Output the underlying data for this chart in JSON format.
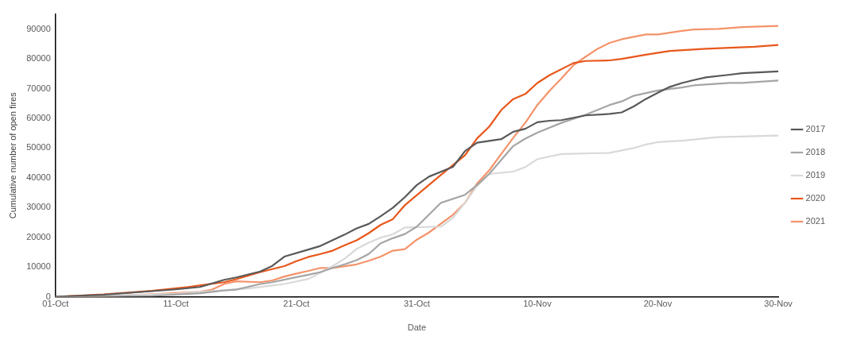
{
  "chart_data": {
    "type": "line",
    "xlabel": "Date",
    "ylabel": "Cumulative number of open fires",
    "xlim": [
      "--10-01",
      "--11-30"
    ],
    "xticks": [
      {
        "value": "--10-01",
        "label": "01-Oct"
      },
      {
        "value": "--10-11",
        "label": "11-Oct"
      },
      {
        "value": "--10-21",
        "label": "21-Oct"
      },
      {
        "value": "--10-31",
        "label": "31-Oct"
      },
      {
        "value": "--11-10",
        "label": "10-Nov"
      },
      {
        "value": "--11-20",
        "label": "20-Nov"
      },
      {
        "value": "--11-30",
        "label": "30-Nov"
      }
    ],
    "ylim": [
      0,
      95000
    ],
    "yticks": [
      0,
      10000,
      20000,
      30000,
      40000,
      50000,
      60000,
      70000,
      80000,
      90000
    ],
    "grid": false,
    "legend": "right",
    "marker": "none",
    "line_style": "solid",
    "series": [
      {
        "name": "2017",
        "color": "#595959",
        "x": [
          "--10-01",
          "--10-05",
          "--10-09",
          "--10-11",
          "--10-13",
          "--10-15",
          "--10-16",
          "--10-18",
          "--10-19",
          "--10-20",
          "--10-22",
          "--10-23",
          "--10-25",
          "--10-26",
          "--10-27",
          "--10-28",
          "--10-29",
          "--10-30",
          "--10-31",
          "--11-01",
          "--11-03",
          "--11-04",
          "--11-05",
          "--11-07",
          "--11-08",
          "--11-09",
          "--11-10",
          "--11-11",
          "--11-12",
          "--11-14",
          "--11-16",
          "--11-17",
          "--11-18",
          "--11-19",
          "--11-20",
          "--11-21",
          "--11-22",
          "--11-23",
          "--11-24",
          "--11-26",
          "--11-27",
          "--11-30"
        ],
        "values": [
          0,
          700,
          1900,
          2500,
          3300,
          5700,
          6500,
          8500,
          10400,
          13500,
          15900,
          17100,
          20900,
          23000,
          24500,
          27100,
          29900,
          33500,
          37600,
          40400,
          43700,
          49000,
          51800,
          53000,
          55500,
          56500,
          58700,
          59200,
          59400,
          61000,
          61500,
          62000,
          64000,
          66500,
          68600,
          70600,
          71900,
          72900,
          73800,
          74700,
          75200,
          75800
        ]
      },
      {
        "name": "2018",
        "color": "#a5a5a5",
        "x": [
          "--10-01",
          "--10-09",
          "--10-13",
          "--10-15",
          "--10-16",
          "--10-18",
          "--10-19",
          "--10-21",
          "--10-22",
          "--10-23",
          "--10-24",
          "--10-25",
          "--10-26",
          "--10-27",
          "--10-28",
          "--10-29",
          "--10-30",
          "--10-31",
          "--11-02",
          "--11-04",
          "--11-05",
          "--11-06",
          "--11-08",
          "--11-09",
          "--11-10",
          "--11-12",
          "--11-14",
          "--11-16",
          "--11-17",
          "--11-18",
          "--11-20",
          "--11-22",
          "--11-23",
          "--11-26",
          "--11-27",
          "--11-30"
        ],
        "values": [
          0,
          300,
          1200,
          2100,
          2400,
          4300,
          4900,
          6600,
          7400,
          8300,
          9700,
          10900,
          12300,
          14400,
          18000,
          19700,
          21100,
          23600,
          31600,
          34300,
          37600,
          41300,
          50700,
          53200,
          55200,
          58500,
          61200,
          64500,
          65700,
          67600,
          69400,
          70400,
          71100,
          71900,
          71900,
          72700
        ]
      },
      {
        "name": "2019",
        "color": "#d9d9d9",
        "x": [
          "--10-01",
          "--10-11",
          "--10-15",
          "--10-17",
          "--10-19",
          "--10-20",
          "--10-22",
          "--10-23",
          "--10-24",
          "--10-25",
          "--10-26",
          "--10-27",
          "--10-28",
          "--10-29",
          "--10-30",
          "--11-02",
          "--11-03",
          "--11-04",
          "--11-05",
          "--11-06",
          "--11-08",
          "--11-09",
          "--11-10",
          "--11-12",
          "--11-16",
          "--11-18",
          "--11-19",
          "--11-20",
          "--11-22",
          "--11-25",
          "--11-30"
        ],
        "values": [
          0,
          1000,
          2300,
          2800,
          3800,
          4300,
          6000,
          8100,
          10300,
          12800,
          16100,
          18200,
          19900,
          21000,
          23300,
          23600,
          26600,
          31600,
          37300,
          41300,
          42100,
          43600,
          46300,
          48000,
          48400,
          50000,
          51200,
          52000,
          52500,
          53700,
          54200
        ]
      },
      {
        "name": "2020",
        "color": "#e8571b",
        "x": [
          "--10-01",
          "--10-05",
          "--10-09",
          "--10-12",
          "--10-15",
          "--10-16",
          "--10-18",
          "--10-20",
          "--10-21",
          "--10-22",
          "--10-23",
          "--10-24",
          "--10-25",
          "--10-26",
          "--10-27",
          "--10-28",
          "--10-29",
          "--10-30",
          "--11-02",
          "--11-04",
          "--11-05",
          "--11-06",
          "--11-07",
          "--11-08",
          "--11-09",
          "--11-10",
          "--11-11",
          "--11-13",
          "--11-14",
          "--11-16",
          "--11-17",
          "--11-19",
          "--11-21",
          "--11-24",
          "--11-28",
          "--11-30"
        ],
        "values": [
          0,
          800,
          2000,
          3300,
          4900,
          5900,
          8300,
          10300,
          12000,
          13400,
          14400,
          15500,
          17300,
          19000,
          21400,
          24200,
          26100,
          30800,
          41000,
          47600,
          53300,
          57200,
          62800,
          66500,
          68200,
          71900,
          74500,
          78600,
          79300,
          79500,
          80000,
          81400,
          82700,
          83400,
          84100,
          84700
        ]
      },
      {
        "name": "2021",
        "color": "#f4936a",
        "x": [
          "--10-01",
          "--10-06",
          "--10-13",
          "--10-14",
          "--10-15",
          "--10-16",
          "--10-18",
          "--10-19",
          "--10-20",
          "--10-21",
          "--10-22",
          "--10-23",
          "--10-24",
          "--10-25",
          "--10-26",
          "--10-27",
          "--10-28",
          "--10-29",
          "--10-30",
          "--10-31",
          "--11-01",
          "--11-03",
          "--11-04",
          "--11-05",
          "--11-06",
          "--11-07",
          "--11-08",
          "--11-09",
          "--11-10",
          "--11-11",
          "--11-12",
          "--11-13",
          "--11-14",
          "--11-15",
          "--11-16",
          "--11-17",
          "--11-19",
          "--11-20",
          "--11-22",
          "--11-23",
          "--11-25",
          "--11-27",
          "--11-30"
        ],
        "values": [
          0,
          300,
          1700,
          2400,
          4300,
          5200,
          4900,
          5500,
          6800,
          7800,
          8700,
          9700,
          9700,
          10300,
          10900,
          12100,
          13500,
          15500,
          16000,
          19200,
          21600,
          27600,
          31600,
          38100,
          42500,
          48000,
          53500,
          58500,
          64500,
          69200,
          73400,
          77900,
          80700,
          83400,
          85400,
          86600,
          88200,
          88200,
          89400,
          89900,
          90100,
          90700,
          91100
        ]
      }
    ]
  }
}
